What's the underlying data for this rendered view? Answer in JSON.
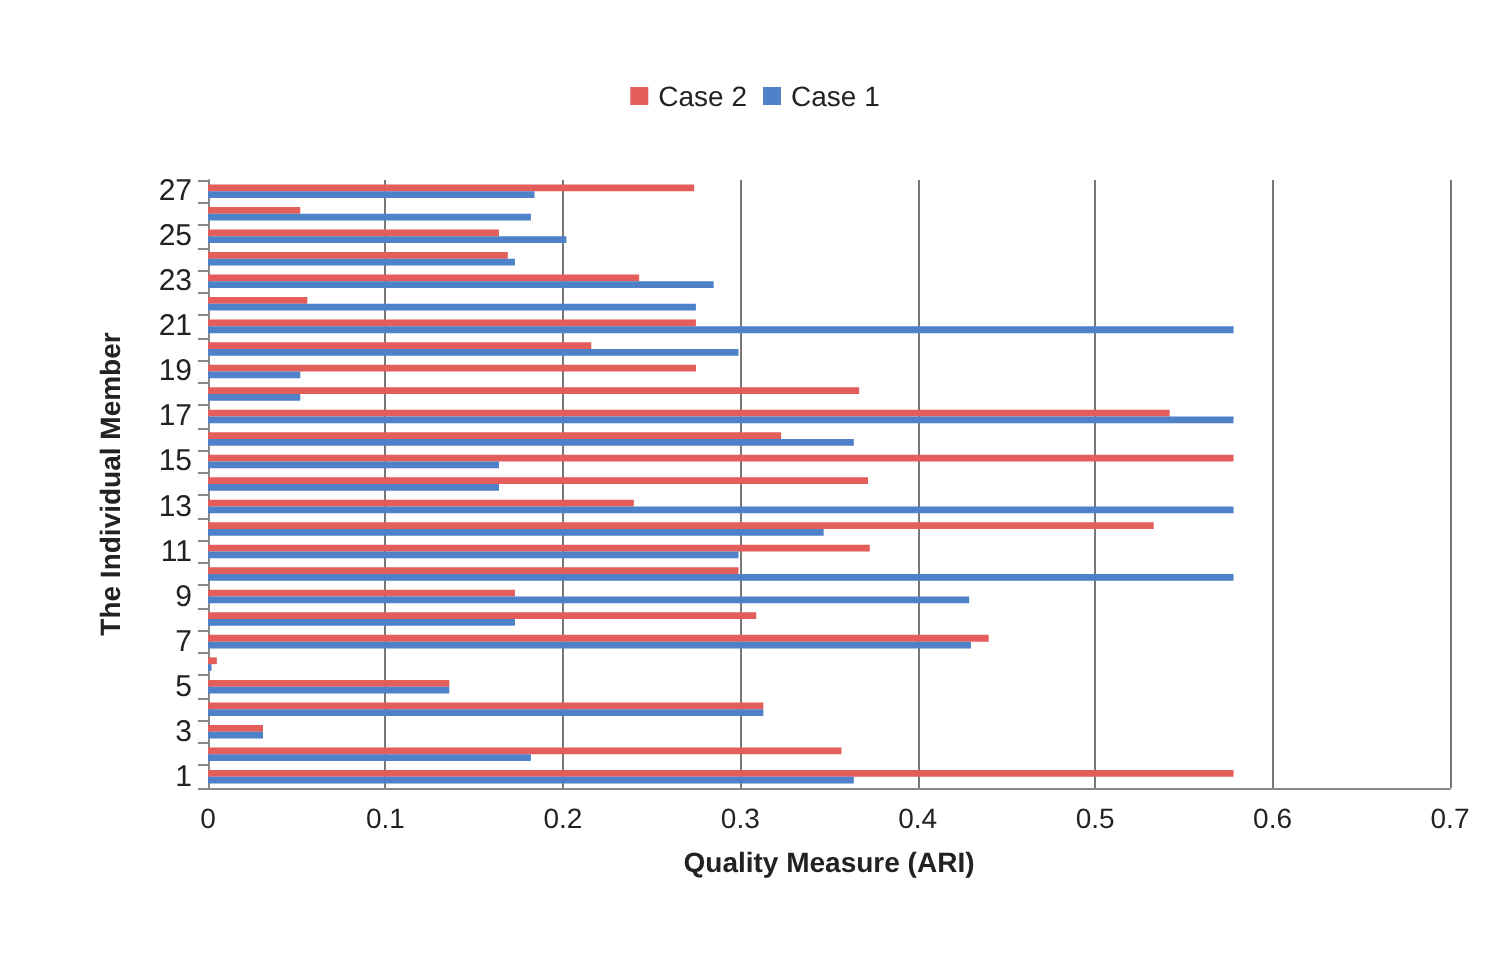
{
  "chart_data": {
    "type": "bar",
    "orientation": "horizontal",
    "xlabel": "Quality Measure (ARI)",
    "ylabel": "The Individual Member",
    "categories": [
      "27",
      null,
      "25",
      null,
      "23",
      null,
      "21",
      null,
      "19",
      null,
      "17",
      null,
      "15",
      null,
      "13",
      null,
      "11",
      null,
      "9",
      null,
      "7",
      null,
      "5",
      null,
      "3",
      null,
      "1"
    ],
    "series": [
      {
        "name": "Case 2",
        "color": "#e35d5b",
        "values": [
          0.274,
          0.052,
          0.164,
          0.169,
          0.243,
          0.056,
          0.275,
          0.216,
          0.275,
          0.367,
          0.542,
          0.323,
          0.578,
          0.372,
          0.24,
          0.533,
          0.373,
          0.299,
          0.173,
          0.309,
          0.44,
          0.005,
          0.136,
          0.313,
          0.031,
          0.357,
          0.578
        ]
      },
      {
        "name": "Case 1",
        "color": "#4f81c9",
        "values": [
          0.184,
          0.182,
          0.202,
          0.173,
          0.285,
          0.275,
          0.578,
          0.299,
          0.052,
          0.052,
          0.578,
          0.364,
          0.164,
          0.164,
          0.578,
          0.347,
          0.299,
          0.578,
          0.429,
          0.173,
          0.43,
          0.002,
          0.136,
          0.313,
          0.031,
          0.182,
          0.364
        ]
      }
    ],
    "xlim": [
      0,
      0.7
    ],
    "xticks": [
      0,
      0.1,
      0.2,
      0.3,
      0.4,
      0.5,
      0.6,
      0.7
    ],
    "grid": "x",
    "legend": "top"
  }
}
